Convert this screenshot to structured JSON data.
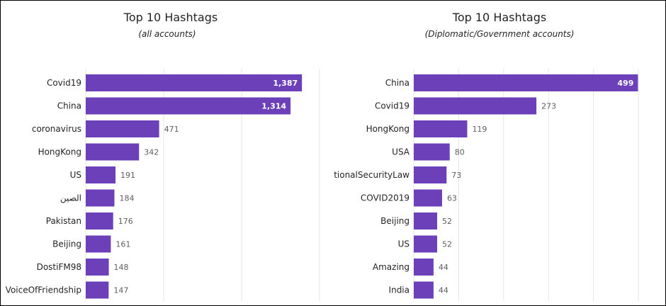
{
  "colors": {
    "bar": "#6b40b8",
    "grid": "#e6e6e6"
  },
  "chart_data": [
    {
      "type": "bar",
      "orientation": "horizontal",
      "title": "Top 10 Hashtags",
      "subtitle": "(all accounts)",
      "categories": [
        "Covid19",
        "China",
        "coronavirus",
        "HongKong",
        "US",
        "الصين",
        "Pakistan",
        "Beijing",
        "DostiFM98",
        "VoiceOfFriendship"
      ],
      "values": [
        1387,
        1314,
        471,
        342,
        191,
        184,
        176,
        161,
        148,
        147
      ],
      "value_labels": [
        "1,387",
        "1,314",
        "471",
        "342",
        "191",
        "184",
        "176",
        "161",
        "148",
        "147"
      ],
      "xlim": [
        0,
        1500
      ],
      "grid": true
    },
    {
      "type": "bar",
      "orientation": "horizontal",
      "title": "Top 10 Hashtags",
      "subtitle": "(Diplomatic/Government accounts)",
      "categories": [
        "China",
        "Covid19",
        "HongKong",
        "USA",
        "NationalSecurityLaw",
        "COVID2019",
        "Beijing",
        "US",
        "Amazing",
        "India"
      ],
      "values": [
        499,
        273,
        119,
        80,
        73,
        63,
        52,
        52,
        44,
        44
      ],
      "value_labels": [
        "499",
        "273",
        "119",
        "80",
        "73",
        "63",
        "52",
        "52",
        "44",
        "44"
      ],
      "xlim": [
        0,
        500
      ],
      "grid": true
    }
  ]
}
